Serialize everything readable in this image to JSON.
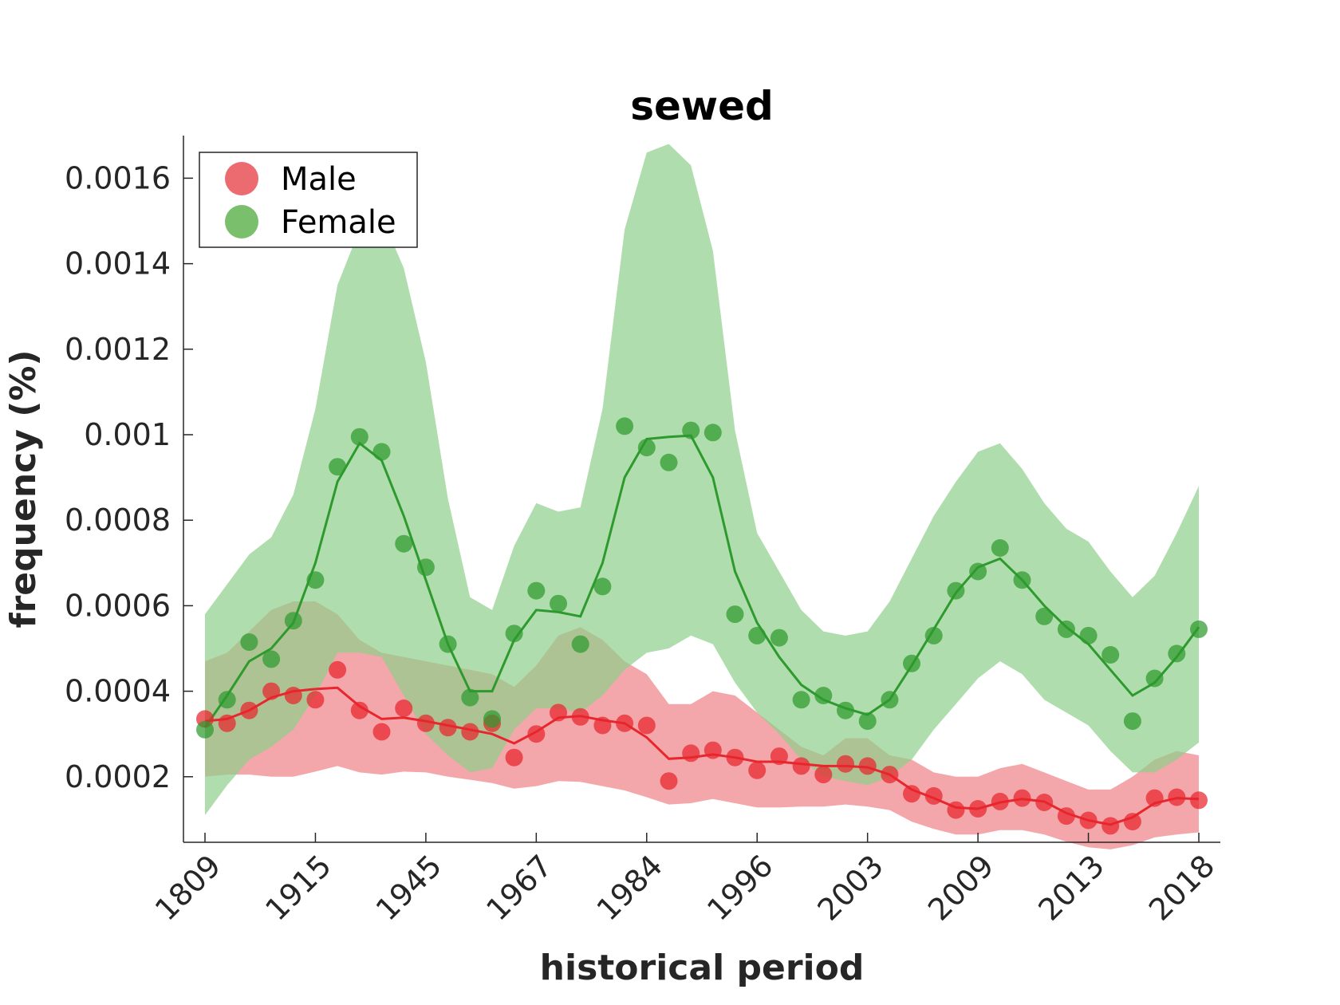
{
  "chart_data": {
    "type": "line",
    "title": "sewed",
    "xlabel": "historical period",
    "ylabel": "frequency (%)",
    "x_tick_labels": [
      "1809",
      "1915",
      "1945",
      "1967",
      "1984",
      "1996",
      "2003",
      "2009",
      "2013",
      "2018"
    ],
    "x_tick_positions": [
      1,
      6,
      11,
      16,
      21,
      26,
      31,
      36,
      41,
      46
    ],
    "xlim": [
      0,
      47
    ],
    "y_ticks": [
      0.0002,
      0.0004,
      0.0006,
      0.0008,
      0.001,
      0.0012,
      0.0014,
      0.0016
    ],
    "y_tick_labels": [
      "0.0002",
      "0.0004",
      "0.0006",
      "0.0008",
      "0.001",
      "0.0012",
      "0.0014",
      "0.0016"
    ],
    "ylim": [
      3e-05,
      0.00168
    ],
    "grid": false,
    "legend": {
      "position": "top-left",
      "entries": [
        "Male",
        "Female"
      ]
    },
    "series": [
      {
        "name": "Male",
        "color": "#e8262d",
        "band_color": "#f08a8e",
        "points": [
          0.000335,
          0.000325,
          0.000355,
          0.0004,
          0.00039,
          0.00038,
          0.00045,
          0.000355,
          0.000305,
          0.00036,
          0.000325,
          0.000315,
          0.000305,
          0.000325,
          0.000245,
          0.0003,
          0.00035,
          0.00034,
          0.00032,
          0.000325,
          0.00032,
          0.00019,
          0.000255,
          0.000262,
          0.000245,
          0.000215,
          0.000248,
          0.000225,
          0.000205,
          0.00023,
          0.000225,
          0.000205,
          0.00016,
          0.000155,
          0.000122,
          0.000125,
          0.000142,
          0.00015,
          0.00014,
          0.000108,
          9.8e-05,
          8.5e-05,
          9.5e-05,
          0.00015,
          0.000152,
          0.000145
        ],
        "line": [
          0.00033,
          0.000335,
          0.000355,
          0.000385,
          0.0004,
          0.000405,
          0.000408,
          0.000365,
          0.000335,
          0.000338,
          0.00033,
          0.00032,
          0.00031,
          0.0003,
          0.000278,
          0.000305,
          0.000338,
          0.000342,
          0.000332,
          0.000325,
          0.000292,
          0.000242,
          0.000245,
          0.000252,
          0.000245,
          0.000235,
          0.000235,
          0.00023,
          0.000225,
          0.000225,
          0.000222,
          0.000205,
          0.00017,
          0.00015,
          0.000128,
          0.000125,
          0.00014,
          0.000148,
          0.000142,
          0.000115,
          9.8e-05,
          8.8e-05,
          0.000105,
          0.000138,
          0.00015,
          0.000148
        ],
        "band_upper": [
          0.00047,
          0.00049,
          0.00054,
          0.00059,
          0.00061,
          0.00061,
          0.00058,
          0.00052,
          0.00049,
          0.00048,
          0.00047,
          0.00046,
          0.00045,
          0.00044,
          0.00041,
          0.00046,
          0.00053,
          0.00055,
          0.00052,
          0.00047,
          0.00044,
          0.00037,
          0.00037,
          0.0004,
          0.00039,
          0.00035,
          0.00031,
          0.00027,
          0.00025,
          0.00029,
          0.00029,
          0.00025,
          0.00024,
          0.00021,
          0.0002,
          0.0002,
          0.00022,
          0.00023,
          0.00021,
          0.00019,
          0.00017,
          0.00017,
          0.0002,
          0.00024,
          0.00026,
          0.00025
        ],
        "band_lower": [
          0.0002,
          0.000205,
          0.000205,
          0.0002,
          0.0002,
          0.000212,
          0.000225,
          0.00021,
          0.000205,
          0.000212,
          0.00021,
          0.0002,
          0.000193,
          0.000185,
          0.000172,
          0.000178,
          0.00019,
          0.000188,
          0.000178,
          0.000168,
          0.000152,
          0.000135,
          0.000138,
          0.000148,
          0.000138,
          0.000128,
          0.000128,
          0.00013,
          0.00013,
          0.000135,
          0.00013,
          0.000122,
          9.5e-05,
          7.8e-05,
          6.5e-05,
          6.5e-05,
          7.5e-05,
          7.5e-05,
          6.5e-05,
          4.8e-05,
          3.5e-05,
          3e-05,
          4e-05,
          5.8e-05,
          6.5e-05,
          7e-05
        ]
      },
      {
        "name": "Female",
        "color": "#2e9a2e",
        "band_color": "#8fcf8a",
        "points": [
          0.00031,
          0.00038,
          0.000515,
          0.000475,
          0.000565,
          0.00066,
          0.000925,
          0.000995,
          0.00096,
          0.000745,
          0.00069,
          0.00051,
          0.000385,
          0.000335,
          0.000535,
          0.000635,
          0.000605,
          0.00051,
          0.000645,
          0.00102,
          0.00097,
          0.000935,
          0.00101,
          0.001005,
          0.00058,
          0.00053,
          0.000525,
          0.00038,
          0.00039,
          0.000355,
          0.00033,
          0.00038,
          0.000465,
          0.00053,
          0.000635,
          0.00068,
          0.000735,
          0.00066,
          0.000575,
          0.000545,
          0.00053,
          0.000485,
          0.00033,
          0.00043,
          0.000488,
          0.000545
        ],
        "line": [
          0.000315,
          0.00039,
          0.00047,
          0.0005,
          0.00056,
          0.0007,
          0.00089,
          0.00098,
          0.00094,
          0.00081,
          0.00066,
          0.00051,
          0.0004,
          0.0004,
          0.00052,
          0.00059,
          0.000585,
          0.000575,
          0.0007,
          0.0009,
          0.00099,
          0.000995,
          0.000998,
          0.0009,
          0.00068,
          0.00056,
          0.00048,
          0.000415,
          0.00038,
          0.00036,
          0.000345,
          0.00038,
          0.00046,
          0.000545,
          0.00063,
          0.00069,
          0.00071,
          0.00066,
          0.0006,
          0.00055,
          0.00051,
          0.00045,
          0.00039,
          0.00042,
          0.00048,
          0.00055
        ],
        "band_upper": [
          0.00058,
          0.00065,
          0.00072,
          0.00076,
          0.00086,
          0.00106,
          0.00135,
          0.00148,
          0.00151,
          0.00139,
          0.00117,
          0.00085,
          0.00062,
          0.00059,
          0.00074,
          0.00084,
          0.00082,
          0.00083,
          0.00106,
          0.00148,
          0.00166,
          0.00168,
          0.00163,
          0.00143,
          0.00101,
          0.00077,
          0.00068,
          0.00059,
          0.00054,
          0.00053,
          0.00054,
          0.00061,
          0.00071,
          0.00081,
          0.00089,
          0.00096,
          0.00098,
          0.00092,
          0.00084,
          0.00078,
          0.00075,
          0.00068,
          0.00062,
          0.00067,
          0.00077,
          0.00088
        ],
        "band_lower": [
          0.00011,
          0.00018,
          0.00024,
          0.00027,
          0.00031,
          0.00039,
          0.00049,
          0.00049,
          0.00048,
          0.00039,
          0.0003,
          0.00025,
          0.00021,
          0.00022,
          0.00031,
          0.00036,
          0.00036,
          0.00035,
          0.00039,
          0.00045,
          0.00049,
          0.0005,
          0.00053,
          0.00051,
          0.00042,
          0.00035,
          0.0003,
          0.00024,
          0.0002,
          0.00019,
          0.00018,
          0.0002,
          0.00024,
          0.00031,
          0.00037,
          0.00043,
          0.00047,
          0.00044,
          0.00038,
          0.00035,
          0.00032,
          0.00026,
          0.00021,
          0.00021,
          0.00024,
          0.00028
        ]
      }
    ]
  }
}
